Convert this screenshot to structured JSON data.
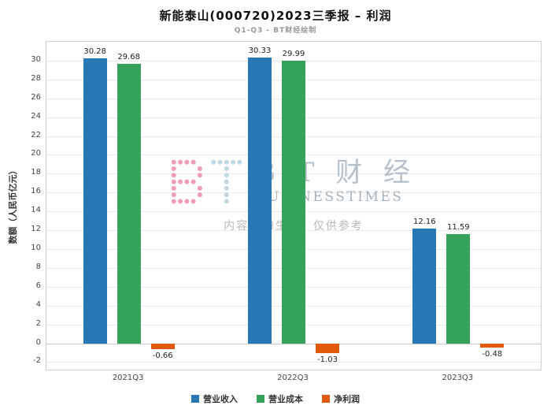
{
  "chart_data": {
    "type": "bar",
    "title": "新能泰山(000720)2023三季报 – 利润",
    "subtitle": "Q1-Q3 - BT财经绘制",
    "categories": [
      "2021Q3",
      "2022Q3",
      "2023Q3"
    ],
    "series": [
      {
        "name": "营业收入",
        "color": "#2878B5",
        "values": [
          30.28,
          30.33,
          12.16
        ]
      },
      {
        "name": "营业成本",
        "color": "#36A35D",
        "values": [
          29.68,
          29.99,
          11.59
        ]
      },
      {
        "name": "净利润",
        "color": "#E2590B",
        "values": [
          -0.66,
          -1.03,
          -0.48
        ]
      }
    ],
    "xlabel": "",
    "ylabel": "数额（人民币亿元）",
    "ylim": [
      -2.8,
      32
    ],
    "yticks": [
      -2,
      0,
      2,
      4,
      6,
      8,
      10,
      12,
      14,
      16,
      18,
      20,
      22,
      24,
      26,
      28,
      30
    ],
    "grid": true,
    "legend_position": "bottom"
  },
  "watermark": {
    "brand_cn": "B T 财 经",
    "brand_en": "BUSINESSTIMES",
    "notice": "内容由AI生成，仅供参考",
    "dot_color_pink": "#EF9DB5",
    "dot_color_blue": "#BED8E4"
  }
}
